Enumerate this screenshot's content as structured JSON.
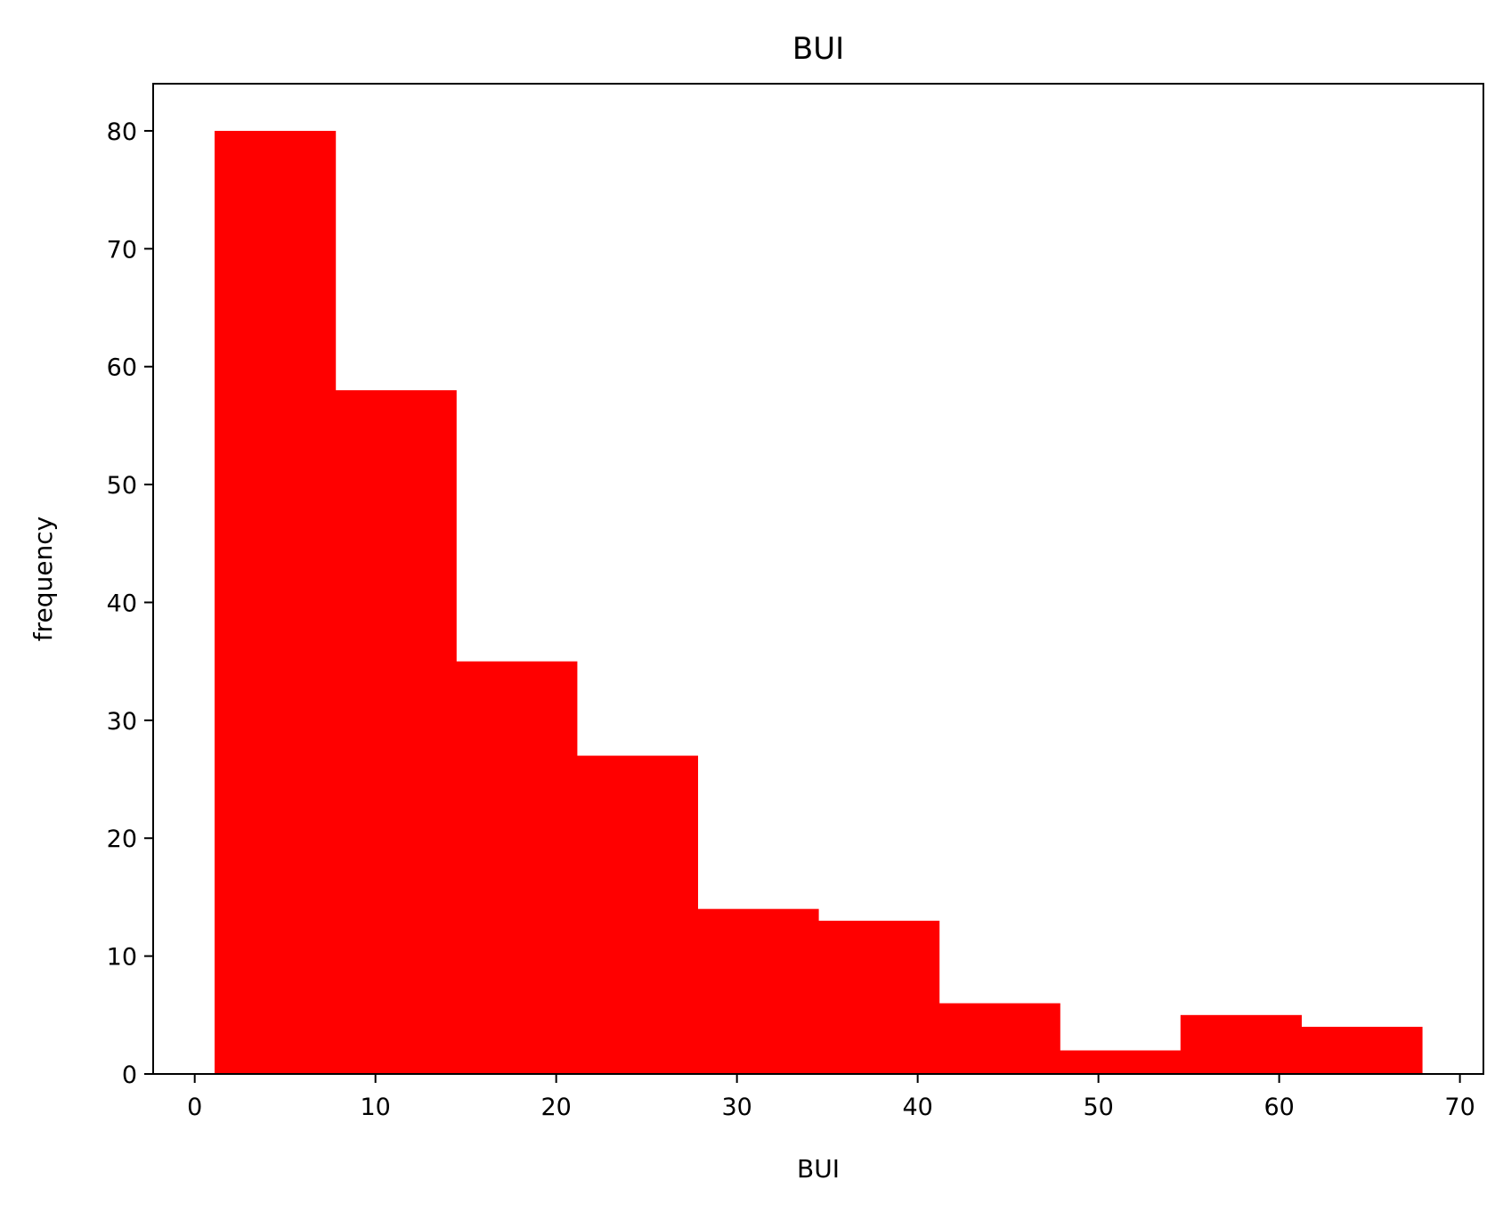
{
  "chart_data": {
    "type": "bar",
    "title": "BUI",
    "xlabel": "BUI",
    "ylabel": "frequency",
    "bin_edges": [
      1.1,
      7.78,
      14.46,
      21.14,
      27.82,
      34.5,
      41.18,
      47.86,
      54.54,
      61.22,
      67.9
    ],
    "values": [
      80,
      58,
      35,
      27,
      14,
      13,
      6,
      2,
      5,
      4
    ],
    "xlim": [
      -2.3,
      71.3
    ],
    "ylim": [
      0,
      84
    ],
    "xticks": [
      0,
      10,
      20,
      30,
      40,
      50,
      60,
      70
    ],
    "yticks": [
      0,
      10,
      20,
      30,
      40,
      50,
      60,
      70,
      80
    ],
    "grid": false,
    "bar_color": "#ff0000"
  }
}
